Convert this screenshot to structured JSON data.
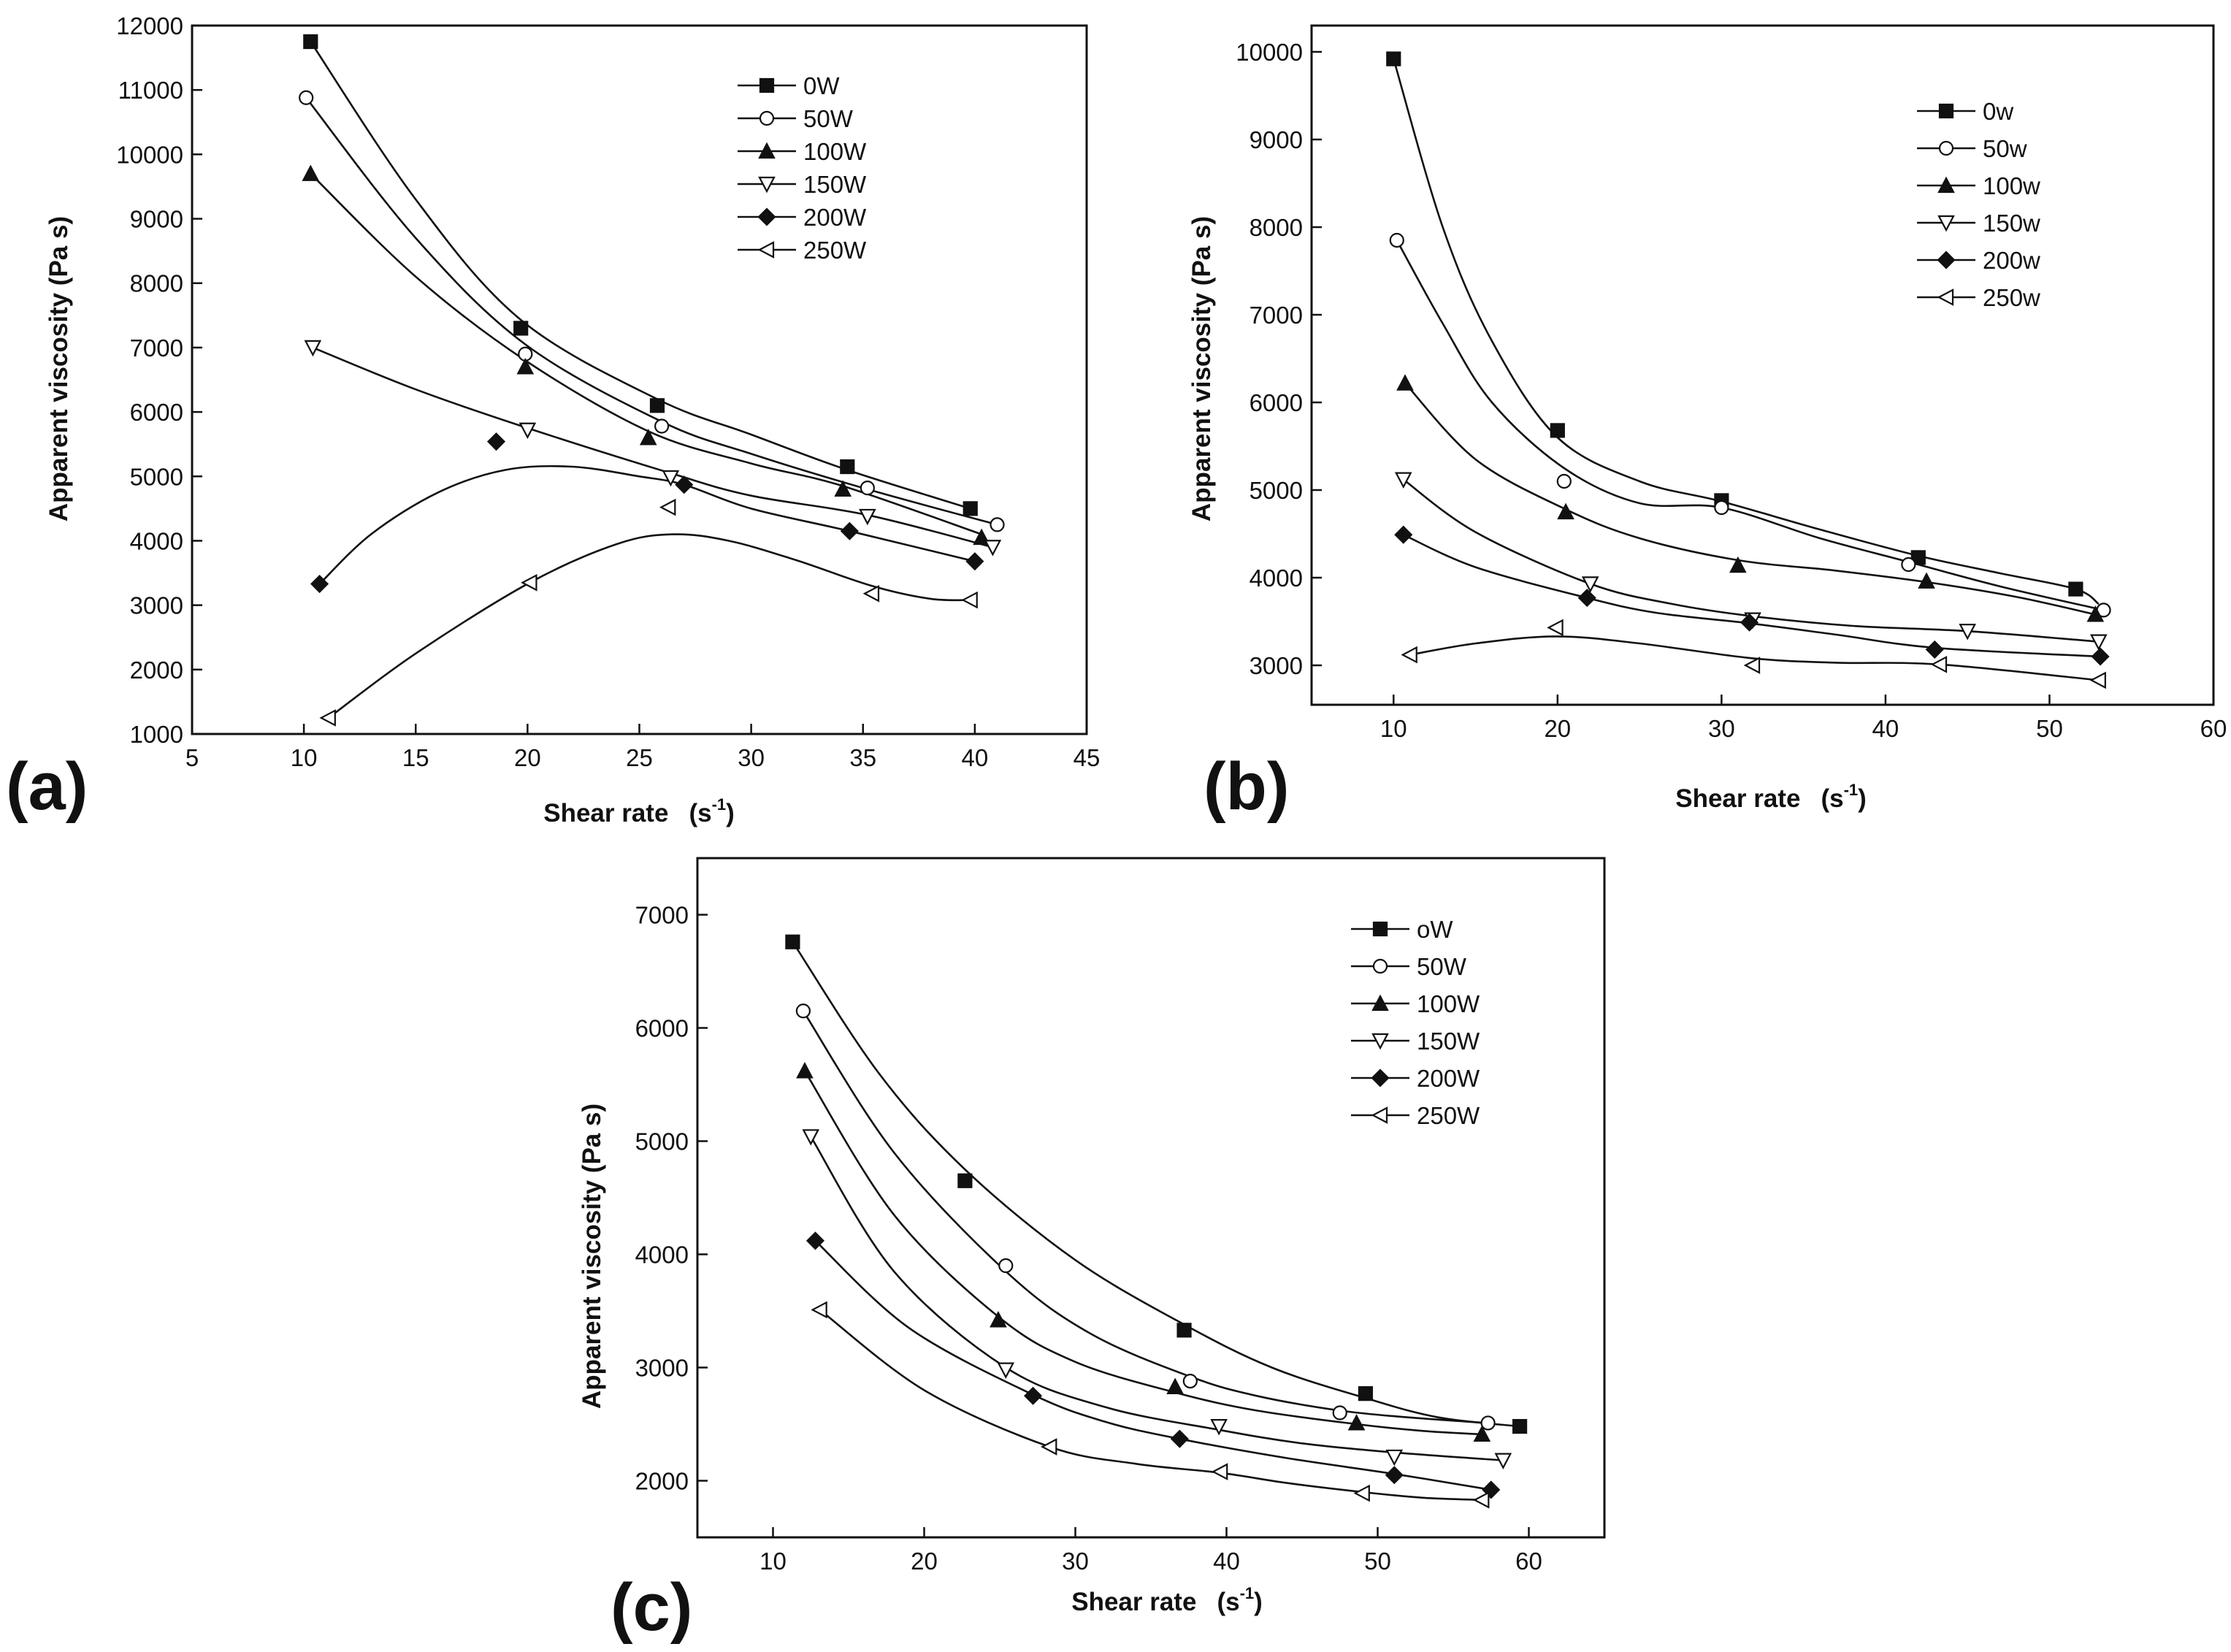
{
  "chart_data": [
    {
      "type": "scatter",
      "panel": "(a)",
      "xlabel": "Shear rate",
      "xlabel_unit": "(s",
      "xlabel_exp": "-1",
      "xlabel_close": ")",
      "ylabel": "Apparent viscosity  (Pa s)",
      "xlim": [
        5,
        45
      ],
      "ylim": [
        1000,
        12000
      ],
      "xticks": [
        5,
        10,
        15,
        20,
        25,
        30,
        35,
        40,
        45
      ],
      "yticks": [
        1000,
        2000,
        3000,
        4000,
        5000,
        6000,
        7000,
        8000,
        9000,
        10000,
        11000,
        12000
      ],
      "legend_position": "top-right",
      "series": [
        {
          "name": "0W",
          "marker": "square-filled",
          "x": [
            10.3,
            19.7,
            25.8,
            34.3,
            39.8
          ],
          "y": [
            11750,
            7300,
            6100,
            5150,
            4500
          ]
        },
        {
          "name": "50W",
          "marker": "circle-open",
          "x": [
            10.1,
            19.9,
            26.0,
            35.2,
            41.0
          ],
          "y": [
            10880,
            6900,
            5780,
            4820,
            4250
          ]
        },
        {
          "name": "100W",
          "marker": "triangle-up-filled",
          "x": [
            10.3,
            19.9,
            25.4,
            34.1,
            40.3
          ],
          "y": [
            9700,
            6700,
            5600,
            4800,
            4050
          ]
        },
        {
          "name": "150W",
          "marker": "triangle-down-open",
          "x": [
            10.4,
            20.0,
            26.4,
            35.2,
            40.8
          ],
          "y": [
            7000,
            5720,
            4980,
            4380,
            3900
          ]
        },
        {
          "name": "200W",
          "marker": "diamond-filled",
          "x": [
            10.7,
            18.6,
            27.0,
            34.4,
            40.0
          ],
          "y": [
            3330,
            5540,
            4870,
            4150,
            3680
          ]
        },
        {
          "name": "250W",
          "marker": "triangle-left-open",
          "x": [
            11.1,
            20.1,
            26.3,
            35.4,
            39.8
          ],
          "y": [
            1250,
            3350,
            4520,
            3180,
            3080
          ]
        }
      ],
      "curves": [
        {
          "name": "0W",
          "x": [
            10.3,
            15,
            19.7,
            25.8,
            30,
            34.3,
            39.8
          ],
          "y": [
            11750,
            9300,
            7430,
            6200,
            5650,
            5100,
            4500
          ]
        },
        {
          "name": "50W",
          "x": [
            10.1,
            15,
            19.9,
            26.0,
            30,
            35.2,
            41.0
          ],
          "y": [
            10880,
            8700,
            7050,
            5850,
            5350,
            4800,
            4250
          ]
        },
        {
          "name": "100W",
          "x": [
            10.3,
            15,
            19.9,
            25.4,
            30,
            34.1,
            40.3
          ],
          "y": [
            9700,
            8100,
            6800,
            5700,
            5200,
            4850,
            4100
          ]
        },
        {
          "name": "150W",
          "x": [
            10.4,
            15,
            20.0,
            26.4,
            30,
            35.2,
            40.8
          ],
          "y": [
            7000,
            6350,
            5750,
            5050,
            4700,
            4400,
            3900
          ]
        },
        {
          "name": "200W",
          "x": [
            10.7,
            13,
            16,
            19,
            22,
            25,
            27.0,
            30,
            34.4,
            40.0
          ],
          "y": [
            3330,
            4100,
            4750,
            5100,
            5150,
            5000,
            4870,
            4500,
            4150,
            3680
          ]
        },
        {
          "name": "250W",
          "x": [
            11.1,
            15,
            20.1,
            24,
            26.5,
            29,
            32,
            35.4,
            38,
            39.8
          ],
          "y": [
            1250,
            2250,
            3350,
            3950,
            4100,
            4000,
            3700,
            3300,
            3100,
            3080
          ]
        }
      ]
    },
    {
      "type": "scatter",
      "panel": "(b)",
      "xlabel": "Shear rate",
      "xlabel_unit": "(s",
      "xlabel_exp": "-1",
      "xlabel_close": ")",
      "ylabel": "Apparent viscosity  (Pa s)",
      "xlim": [
        5,
        60
      ],
      "ylim": [
        2550,
        10300
      ],
      "xticks": [
        10,
        20,
        30,
        40,
        50,
        60
      ],
      "yticks": [
        3000,
        4000,
        5000,
        6000,
        7000,
        8000,
        9000,
        10000
      ],
      "legend_position": "top-right",
      "series": [
        {
          "name": "0w",
          "marker": "square-filled",
          "x": [
            10.0,
            20.0,
            30.0,
            42.0,
            51.6
          ],
          "y": [
            9920,
            5680,
            4880,
            4230,
            3870
          ]
        },
        {
          "name": "50w",
          "marker": "circle-open",
          "x": [
            10.2,
            20.4,
            30.0,
            41.4,
            53.3
          ],
          "y": [
            7850,
            5100,
            4800,
            4150,
            3630
          ]
        },
        {
          "name": "100w",
          "marker": "triangle-up-filled",
          "x": [
            10.7,
            20.5,
            31.0,
            42.5,
            52.8
          ],
          "y": [
            6220,
            4750,
            4140,
            3960,
            3580
          ]
        },
        {
          "name": "150w",
          "marker": "triangle-down-open",
          "x": [
            10.6,
            22.0,
            31.9,
            45.0,
            53.0
          ],
          "y": [
            5120,
            3930,
            3520,
            3390,
            3270
          ]
        },
        {
          "name": "200w",
          "marker": "diamond-filled",
          "x": [
            10.6,
            21.8,
            31.7,
            43.0,
            53.1
          ],
          "y": [
            4490,
            3770,
            3490,
            3180,
            3100
          ]
        },
        {
          "name": "250w",
          "marker": "triangle-left-open",
          "x": [
            11.0,
            19.9,
            31.9,
            43.3,
            53.0
          ],
          "y": [
            3120,
            3430,
            3000,
            3010,
            2830
          ]
        }
      ],
      "curves": [
        {
          "name": "0w",
          "x": [
            10.0,
            13,
            16,
            20,
            25,
            30,
            36,
            42,
            47,
            51.6,
            53
          ],
          "y": [
            9920,
            8000,
            6700,
            5600,
            5100,
            4870,
            4550,
            4250,
            4050,
            3870,
            3700
          ]
        },
        {
          "name": "50w",
          "x": [
            10.2,
            13,
            16,
            20.4,
            25,
            30,
            36,
            41.4,
            47,
            53.3
          ],
          "y": [
            7850,
            6900,
            6000,
            5250,
            4850,
            4800,
            4450,
            4180,
            3900,
            3630
          ]
        },
        {
          "name": "100w",
          "x": [
            10.7,
            15,
            20.5,
            25,
            31.0,
            37,
            42.5,
            48,
            52.8
          ],
          "y": [
            6220,
            5350,
            4780,
            4450,
            4200,
            4080,
            3950,
            3780,
            3580
          ]
        },
        {
          "name": "150w",
          "x": [
            10.6,
            15,
            22.0,
            27,
            31.9,
            38,
            45.0,
            53.0
          ],
          "y": [
            5120,
            4520,
            3930,
            3700,
            3560,
            3450,
            3390,
            3270
          ]
        },
        {
          "name": "200w",
          "x": [
            10.6,
            15,
            21.8,
            26,
            31.7,
            37,
            43.0,
            53.1
          ],
          "y": [
            4490,
            4120,
            3770,
            3600,
            3480,
            3350,
            3200,
            3100
          ]
        },
        {
          "name": "250w",
          "x": [
            11.0,
            15,
            19.9,
            25,
            31.9,
            37,
            43.3,
            53.0
          ],
          "y": [
            3120,
            3250,
            3330,
            3250,
            3080,
            3030,
            3010,
            2830
          ]
        }
      ]
    },
    {
      "type": "scatter",
      "panel": "(c)",
      "xlabel": "Shear rate",
      "xlabel_unit": "(s",
      "xlabel_exp": "-1",
      "xlabel_close": ")",
      "ylabel": "Apparent viscosity  (Pa s)",
      "xlim": [
        5,
        65
      ],
      "ylim": [
        1500,
        7500
      ],
      "xticks": [
        10,
        20,
        30,
        40,
        50,
        60
      ],
      "yticks": [
        2000,
        3000,
        4000,
        5000,
        6000,
        7000
      ],
      "legend_position": "top-right",
      "series": [
        {
          "name": "oW",
          "marker": "square-filled",
          "x": [
            11.3,
            22.7,
            37.2,
            49.2,
            59.4
          ],
          "y": [
            6760,
            4650,
            3330,
            2770,
            2480
          ]
        },
        {
          "name": "50W",
          "marker": "circle-open",
          "x": [
            12.0,
            25.4,
            37.6,
            47.5,
            57.3
          ],
          "y": [
            6150,
            3900,
            2880,
            2600,
            2510
          ]
        },
        {
          "name": "100W",
          "marker": "triangle-up-filled",
          "x": [
            12.1,
            24.9,
            36.6,
            48.6,
            56.9
          ],
          "y": [
            5620,
            3420,
            2830,
            2510,
            2410
          ]
        },
        {
          "name": "150W",
          "marker": "triangle-down-open",
          "x": [
            12.5,
            25.4,
            39.5,
            51.1,
            58.3
          ],
          "y": [
            5040,
            2980,
            2480,
            2210,
            2180
          ]
        },
        {
          "name": "200W",
          "marker": "diamond-filled",
          "x": [
            12.8,
            27.2,
            36.9,
            51.1,
            57.5
          ],
          "y": [
            4120,
            2750,
            2370,
            2050,
            1920
          ]
        },
        {
          "name": "250W",
          "marker": "triangle-left-open",
          "x": [
            13.1,
            28.3,
            39.6,
            49.0,
            56.9
          ],
          "y": [
            3510,
            2300,
            2080,
            1890,
            1830
          ]
        }
      ],
      "curves": [
        {
          "name": "oW",
          "x": [
            11.3,
            17,
            22.7,
            30,
            37.2,
            43,
            49.2,
            54,
            59.4
          ],
          "y": [
            6760,
            5600,
            4750,
            3950,
            3380,
            3000,
            2730,
            2560,
            2480
          ]
        },
        {
          "name": "50W",
          "x": [
            12.0,
            18,
            25.4,
            31,
            37.6,
            42,
            47.5,
            52,
            57.3
          ],
          "y": [
            6150,
            4900,
            3850,
            3300,
            2920,
            2750,
            2620,
            2560,
            2510
          ]
        },
        {
          "name": "100W",
          "x": [
            12.1,
            18,
            24.9,
            30,
            36.6,
            42,
            48.6,
            53,
            56.9
          ],
          "y": [
            5620,
            4350,
            3450,
            3050,
            2780,
            2620,
            2500,
            2440,
            2410
          ]
        },
        {
          "name": "150W",
          "x": [
            12.5,
            18,
            25.4,
            32,
            39.5,
            45,
            51.1,
            58.3
          ],
          "y": [
            5040,
            3850,
            3000,
            2650,
            2450,
            2330,
            2250,
            2180
          ]
        },
        {
          "name": "200W",
          "x": [
            12.8,
            19,
            27.2,
            32,
            36.9,
            44,
            51.1,
            57.5
          ],
          "y": [
            4120,
            3350,
            2760,
            2520,
            2370,
            2200,
            2060,
            1920
          ]
        },
        {
          "name": "250W",
          "x": [
            13.1,
            20,
            28.3,
            34,
            39.6,
            44,
            49.0,
            53,
            56.9
          ],
          "y": [
            3510,
            2800,
            2300,
            2150,
            2070,
            1980,
            1900,
            1850,
            1830
          ]
        }
      ]
    }
  ]
}
